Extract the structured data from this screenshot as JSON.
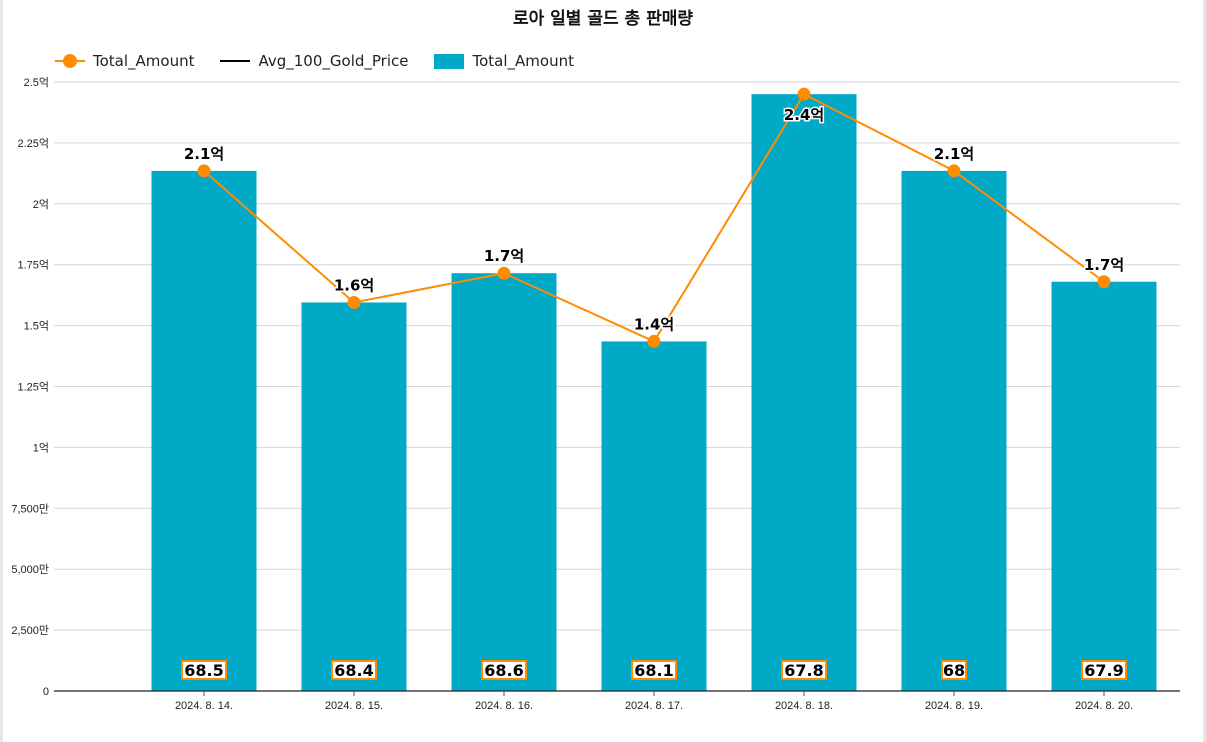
{
  "chart_data": {
    "type": "bar",
    "title": "로아 일별 골드 총 판매량",
    "categories": [
      "2024. 8. 14.",
      "2024. 8. 15.",
      "2024. 8. 16.",
      "2024. 8. 17.",
      "2024. 8. 18.",
      "2024. 8. 19.",
      "2024. 8. 20."
    ],
    "series": [
      {
        "name": "Total_Amount",
        "kind": "bar",
        "color": "#00a9c5",
        "values": [
          213500000,
          159500000,
          171500000,
          143500000,
          245000000,
          213500000,
          168000000
        ]
      },
      {
        "name": "Total_Amount",
        "kind": "line",
        "color": "#ff8c00",
        "values": [
          213500000,
          159500000,
          171500000,
          143500000,
          245000000,
          213500000,
          168000000
        ],
        "labels": [
          "2.1억",
          "1.6억",
          "1.7억",
          "1.4억",
          "2.4억",
          "2.1억",
          "1.7억"
        ]
      },
      {
        "name": "Avg_100_Gold_Price",
        "kind": "line",
        "color": "#000000",
        "values": [
          68.5,
          68.4,
          68.6,
          68.1,
          67.8,
          68,
          67.9
        ],
        "labels": [
          "68.5",
          "68.4",
          "68.6",
          "68.1",
          "67.8",
          "68",
          "67.9"
        ]
      }
    ],
    "legend": [
      "Total_Amount",
      "Avg_100_Gold_Price",
      "Total_Amount"
    ],
    "legend_position": "top-left",
    "ylim": [
      0,
      250000000
    ],
    "yticks": [
      0,
      25000000,
      50000000,
      75000000,
      100000000,
      125000000,
      150000000,
      175000000,
      200000000,
      225000000,
      250000000
    ],
    "ytick_labels": [
      "0",
      "2,500만",
      "5,000만",
      "7,500만",
      "1억",
      "1.25억",
      "1.5억",
      "1.75억",
      "2억",
      "2.25억",
      "2.5억"
    ],
    "grid": true
  }
}
